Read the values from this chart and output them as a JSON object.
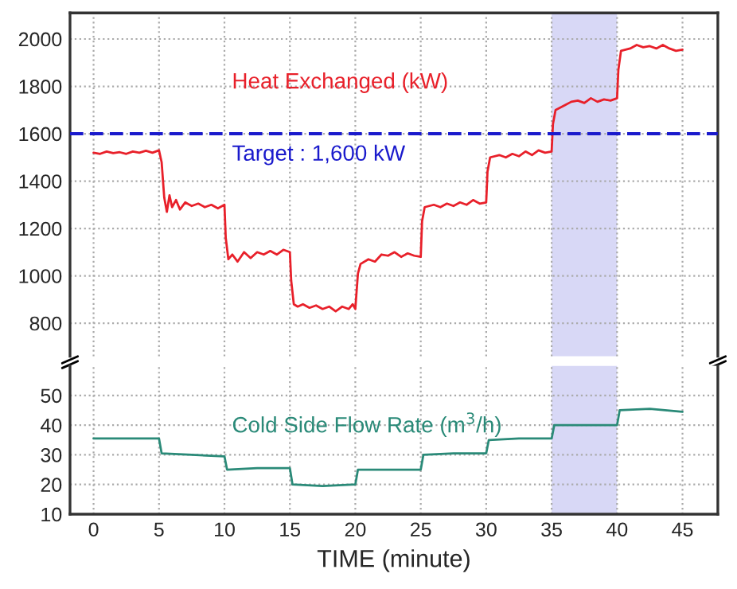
{
  "chart_data": [
    {
      "type": "line",
      "xlim": [
        -1.8,
        47.7
      ],
      "xticks": [
        0,
        5,
        10,
        15,
        20,
        25,
        30,
        35,
        40,
        45
      ],
      "ylim": [
        660,
        2110
      ],
      "yticks": [
        800,
        1000,
        1200,
        1400,
        1600,
        1800,
        2000
      ],
      "tick_labels": "y",
      "grid": true,
      "series": [
        {
          "name": "Heat Exchanged (kW)",
          "color": "#e8202a",
          "x": [
            0,
            0.5,
            1,
            1.5,
            2,
            2.5,
            3,
            3.5,
            4,
            4.5,
            5,
            5.2,
            5.4,
            5.6,
            5.8,
            6,
            6.3,
            6.6,
            7,
            7.5,
            8,
            8.5,
            9,
            9.5,
            10,
            10.1,
            10.3,
            10.6,
            11,
            11.5,
            12,
            12.5,
            13,
            13.5,
            14,
            14.5,
            15,
            15.1,
            15.3,
            15.6,
            16,
            16.5,
            17,
            17.5,
            18,
            18.5,
            19,
            19.5,
            19.8,
            20,
            20.2,
            20.4,
            21,
            21.5,
            22,
            22.5,
            23,
            23.5,
            24,
            24.5,
            25,
            25.1,
            25.3,
            26,
            26.5,
            27,
            27.5,
            28,
            28.5,
            29,
            29.5,
            30,
            30.1,
            30.3,
            31,
            31.5,
            32,
            32.5,
            33,
            33.5,
            34,
            34.5,
            35,
            35.1,
            35.3,
            36,
            36.5,
            37,
            37.5,
            38,
            38.5,
            39,
            39.5,
            40,
            40.1,
            40.3,
            41,
            41.5,
            42,
            42.5,
            43,
            43.5,
            44,
            44.5,
            45
          ],
          "values": [
            1520,
            1515,
            1525,
            1518,
            1522,
            1515,
            1525,
            1520,
            1528,
            1520,
            1530,
            1480,
            1330,
            1270,
            1340,
            1290,
            1320,
            1280,
            1310,
            1295,
            1305,
            1290,
            1300,
            1285,
            1300,
            1160,
            1070,
            1090,
            1060,
            1100,
            1075,
            1100,
            1090,
            1105,
            1090,
            1110,
            1100,
            980,
            880,
            870,
            880,
            865,
            875,
            860,
            870,
            850,
            870,
            860,
            880,
            860,
            1010,
            1050,
            1070,
            1060,
            1090,
            1085,
            1100,
            1080,
            1095,
            1085,
            1080,
            1230,
            1290,
            1300,
            1290,
            1305,
            1295,
            1310,
            1300,
            1320,
            1305,
            1310,
            1440,
            1500,
            1510,
            1500,
            1515,
            1505,
            1525,
            1510,
            1530,
            1520,
            1525,
            1640,
            1700,
            1720,
            1735,
            1740,
            1730,
            1750,
            1735,
            1745,
            1740,
            1750,
            1870,
            1950,
            1960,
            1975,
            1965,
            1970,
            1960,
            1975,
            1960,
            1950,
            1955
          ]
        }
      ],
      "ref_lines": [
        {
          "axis": "y",
          "value": 1600,
          "label": "Target : 1,600 kW",
          "color": "#1a1acc",
          "line_style": "dashed"
        }
      ],
      "bands": [
        {
          "axis": "x",
          "from": 35,
          "to": 40,
          "color": "#d8d8f6"
        }
      ]
    },
    {
      "type": "line",
      "xlim": [
        -1.8,
        47.7
      ],
      "xticks": [
        0,
        5,
        10,
        15,
        20,
        25,
        30,
        35,
        40,
        45
      ],
      "ylim": [
        10,
        60
      ],
      "yticks": [
        10,
        20,
        30,
        40,
        50
      ],
      "grid": true,
      "xlabel": "TIME (minute)",
      "series": [
        {
          "name": "Cold Side Flow Rate (m$^{3}$/h)",
          "color": "#2a8a78",
          "x": [
            0,
            2.5,
            5,
            5.2,
            7.5,
            10,
            10.2,
            12.5,
            15,
            15.2,
            17.5,
            20,
            20.2,
            22.5,
            25,
            25.2,
            27.5,
            30,
            30.2,
            32.5,
            35,
            35.2,
            37.5,
            40,
            40.2,
            42.5,
            45
          ],
          "values": [
            35.5,
            35.5,
            35.5,
            30.5,
            30,
            29.5,
            25,
            25.5,
            25.5,
            20,
            19.5,
            20,
            25,
            25,
            25,
            30,
            30.5,
            30.5,
            35,
            35.5,
            35.5,
            40,
            40,
            40,
            45,
            45.5,
            44.5
          ]
        }
      ],
      "bands": [
        {
          "axis": "x",
          "from": 35,
          "to": 40,
          "color": "#d8d8f6"
        }
      ]
    }
  ]
}
